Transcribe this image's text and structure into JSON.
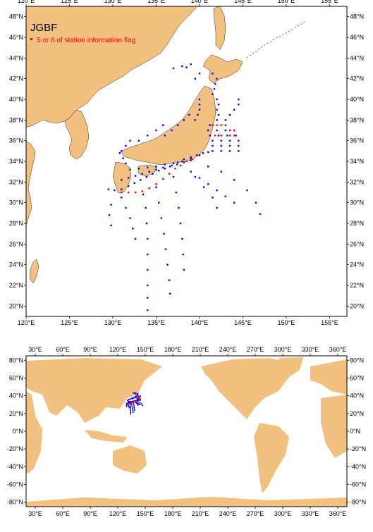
{
  "top_map": {
    "title": "JGBF",
    "legend": {
      "label": "5 or 6 of station information flag",
      "color": "#ff0000"
    },
    "lon_range": [
      120,
      157
    ],
    "lat_range": [
      19,
      49
    ],
    "lon_ticks": [
      "120°E",
      "125°E",
      "130°E",
      "135°E",
      "140°E",
      "145°E",
      "150°E",
      "155°E"
    ],
    "lat_ticks": [
      "20°N",
      "22°N",
      "24°N",
      "26°N",
      "28°N",
      "30°N",
      "32°N",
      "34°N",
      "36°N",
      "38°N",
      "40°N",
      "42°N",
      "44°N",
      "46°N",
      "48°N"
    ]
  },
  "bottom_map": {
    "lon_ticks": [
      "30°E",
      "60°E",
      "90°E",
      "120°E",
      "150°E",
      "180°E",
      "210°E",
      "240°E",
      "270°E",
      "300°E",
      "330°E",
      "360°E"
    ],
    "lat_ticks": [
      "80°N",
      "60°N",
      "40°N",
      "20°N",
      "0°N",
      "-20°N",
      "-40°N",
      "-60°N",
      "-80°N"
    ]
  },
  "colors": {
    "land": "#f2c07f",
    "ocean": "#ffffff",
    "stations": "#0000ff",
    "flagged": "#ff0000"
  },
  "chart_data": {
    "type": "scatter",
    "series": [
      {
        "name": "",
        "color": "#0000ff",
        "points": [
          [
            129.5,
            31.3
          ],
          [
            130.2,
            31.2
          ],
          [
            131.0,
            31.3
          ],
          [
            131.8,
            31.6
          ],
          [
            132.5,
            31.9
          ],
          [
            133.2,
            32.2
          ],
          [
            133.9,
            32.5
          ],
          [
            134.6,
            32.8
          ],
          [
            135.3,
            33.1
          ],
          [
            136.0,
            33.3
          ],
          [
            136.8,
            33.6
          ],
          [
            137.5,
            33.9
          ],
          [
            138.2,
            34.2
          ],
          [
            139.0,
            34.4
          ],
          [
            139.7,
            34.6
          ],
          [
            140.4,
            34.8
          ],
          [
            131.0,
            32.2
          ],
          [
            131.8,
            32.4
          ],
          [
            132.6,
            32.6
          ],
          [
            133.4,
            32.8
          ],
          [
            134.2,
            33.0
          ],
          [
            135.0,
            33.2
          ],
          [
            135.8,
            33.4
          ],
          [
            136.6,
            33.5
          ],
          [
            137.4,
            33.7
          ],
          [
            138.2,
            33.9
          ],
          [
            139.0,
            34.1
          ],
          [
            132.0,
            33.2
          ],
          [
            133.0,
            33.3
          ],
          [
            134.0,
            33.4
          ],
          [
            135.0,
            33.5
          ],
          [
            136.0,
            33.7
          ],
          [
            137.0,
            33.8
          ],
          [
            138.0,
            34.0
          ],
          [
            139.0,
            34.3
          ],
          [
            140.0,
            34.6
          ],
          [
            141.0,
            34.9
          ],
          [
            133.5,
            30.8
          ],
          [
            133.8,
            29.5
          ],
          [
            133.9,
            28.0
          ],
          [
            134.0,
            26.5
          ],
          [
            134.0,
            25.0
          ],
          [
            134.0,
            23.5
          ],
          [
            134.0,
            22.0
          ],
          [
            134.0,
            20.8
          ],
          [
            134.0,
            19.6
          ],
          [
            135.0,
            31.5
          ],
          [
            135.3,
            30.0
          ],
          [
            135.6,
            28.5
          ],
          [
            135.9,
            27.0
          ],
          [
            136.1,
            25.5
          ],
          [
            136.3,
            24.0
          ],
          [
            136.5,
            22.5
          ],
          [
            136.6,
            21.2
          ],
          [
            137.0,
            32.5
          ],
          [
            137.3,
            31.0
          ],
          [
            137.6,
            29.5
          ],
          [
            137.8,
            28.0
          ],
          [
            138.0,
            26.5
          ],
          [
            138.1,
            25.0
          ],
          [
            138.2,
            23.5
          ],
          [
            131.0,
            30.5
          ],
          [
            131.5,
            29.5
          ],
          [
            132.0,
            28.5
          ],
          [
            132.3,
            27.5
          ],
          [
            132.6,
            26.5
          ],
          [
            129.8,
            29.8
          ],
          [
            129.6,
            28.8
          ],
          [
            129.8,
            27.8
          ],
          [
            139.0,
            33.0
          ],
          [
            140.0,
            32.4
          ],
          [
            141.0,
            31.8
          ],
          [
            142.0,
            31.2
          ],
          [
            143.0,
            30.6
          ],
          [
            144.0,
            30.0
          ],
          [
            141.0,
            33.5
          ],
          [
            142.5,
            33.0
          ],
          [
            144.0,
            32.2
          ],
          [
            145.5,
            31.2
          ],
          [
            146.5,
            30.0
          ],
          [
            147.0,
            28.9
          ],
          [
            139.5,
            32.5
          ],
          [
            140.5,
            31.5
          ],
          [
            141.5,
            30.5
          ],
          [
            142.0,
            29.5
          ],
          [
            141.5,
            35.0
          ],
          [
            142.5,
            35.0
          ],
          [
            143.5,
            35.0
          ],
          [
            144.5,
            35.0
          ],
          [
            141.5,
            35.5
          ],
          [
            142.5,
            35.5
          ],
          [
            143.5,
            35.5
          ],
          [
            144.5,
            35.5
          ],
          [
            141.5,
            36.0
          ],
          [
            142.5,
            36.0
          ],
          [
            143.5,
            36.0
          ],
          [
            144.5,
            36.0
          ],
          [
            141.2,
            36.5
          ],
          [
            142.2,
            36.5
          ],
          [
            143.2,
            36.5
          ],
          [
            144.2,
            36.5
          ],
          [
            141.0,
            37.0
          ],
          [
            142.0,
            37.0
          ],
          [
            143.0,
            37.0
          ],
          [
            144.0,
            37.0
          ],
          [
            141.2,
            37.5
          ],
          [
            142.0,
            38.0
          ],
          [
            142.2,
            38.5
          ],
          [
            142.0,
            39.0
          ],
          [
            142.2,
            39.5
          ],
          [
            142.0,
            40.0
          ],
          [
            143.0,
            38.0
          ],
          [
            143.5,
            38.5
          ],
          [
            144.0,
            39.0
          ],
          [
            144.5,
            39.5
          ],
          [
            144.5,
            40.0
          ],
          [
            141.5,
            40.5
          ],
          [
            141.7,
            41.0
          ],
          [
            141.8,
            41.5
          ],
          [
            142.0,
            42.0
          ],
          [
            141.5,
            42.5
          ],
          [
            139.5,
            38.0
          ],
          [
            139.8,
            38.5
          ],
          [
            140.0,
            39.0
          ],
          [
            140.0,
            39.5
          ],
          [
            140.0,
            40.0
          ],
          [
            136.0,
            36.5
          ],
          [
            136.8,
            37.0
          ],
          [
            137.5,
            37.5
          ],
          [
            138.2,
            38.0
          ],
          [
            138.8,
            38.5
          ],
          [
            133.0,
            36.0
          ],
          [
            134.0,
            36.5
          ],
          [
            135.0,
            37.0
          ],
          [
            135.8,
            37.5
          ],
          [
            131.0,
            35.0
          ],
          [
            131.5,
            35.5
          ],
          [
            132.0,
            36.0
          ],
          [
            131.5,
            33.8
          ],
          [
            131.2,
            34.3
          ],
          [
            130.8,
            34.8
          ],
          [
            137.0,
            43.0
          ],
          [
            138.0,
            43.2
          ],
          [
            139.0,
            43.4
          ],
          [
            138.5,
            43.1
          ],
          [
            139.5,
            42.0
          ],
          [
            140.0,
            42.5
          ]
        ]
      },
      {
        "name": "5 or 6 of station information flag",
        "color": "#ff0000",
        "points": [
          [
            131.0,
            31.0
          ],
          [
            131.8,
            31.0
          ],
          [
            132.6,
            31.0
          ],
          [
            133.4,
            31.1
          ],
          [
            134.2,
            31.4
          ],
          [
            135.0,
            31.8
          ],
          [
            135.8,
            32.3
          ],
          [
            136.5,
            32.8
          ],
          [
            137.2,
            33.3
          ],
          [
            137.8,
            33.6
          ],
          [
            138.5,
            34.0
          ],
          [
            139.2,
            34.2
          ],
          [
            141.5,
            37.5
          ],
          [
            142.0,
            37.5
          ],
          [
            142.5,
            37.5
          ],
          [
            143.0,
            37.5
          ],
          [
            143.5,
            37.0
          ],
          [
            144.0,
            37.0
          ],
          [
            144.0,
            36.5
          ],
          [
            143.5,
            36.5
          ],
          [
            142.5,
            36.5
          ],
          [
            141.8,
            36.5
          ]
        ]
      }
    ]
  }
}
